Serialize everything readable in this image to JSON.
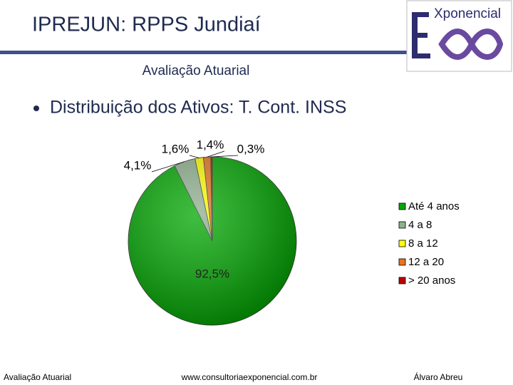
{
  "header": {
    "title": "IPREJUN: RPPS Jundiaí",
    "subtitle": "Avaliação Atuarial",
    "logo": "Xponencial"
  },
  "bullet": "Distribuição dos Ativos: T. Cont. INSS",
  "chart_data": {
    "type": "pie",
    "categories": [
      "Até 4 anos",
      "4 a 8",
      "8 a 12",
      "12 a 20",
      "> 20 anos"
    ],
    "values": [
      92.5,
      4.1,
      1.6,
      1.4,
      0.3
    ],
    "value_labels": [
      "92,5%",
      "4,1%",
      "1,6%",
      "1,4%",
      "0,3%"
    ],
    "colors": [
      "#00a800",
      "#8fb08f",
      "#ffff00",
      "#e8741c",
      "#c00000"
    ],
    "legend": "right"
  },
  "footer": {
    "left": "Avaliação Atuarial",
    "center": "www.consultoriaexponencial.com.br",
    "right": "Álvaro Abreu"
  }
}
